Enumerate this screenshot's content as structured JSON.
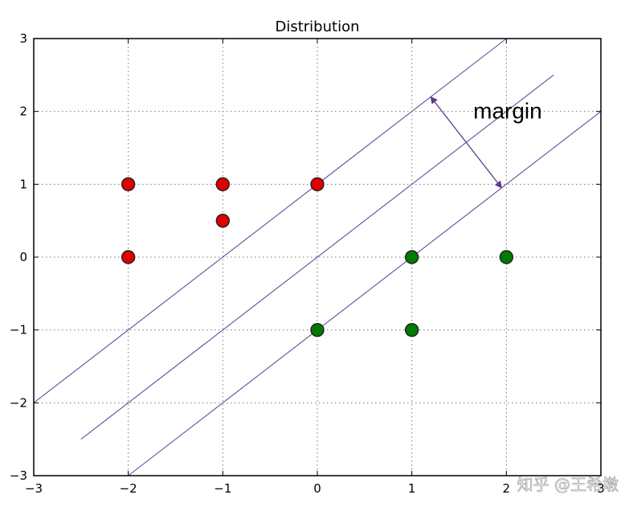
{
  "chart_data": {
    "type": "scatter",
    "title": "Distribution",
    "xlabel": "",
    "ylabel": "",
    "xlim": [
      -3,
      3
    ],
    "ylim": [
      -3,
      3
    ],
    "grid": true,
    "x_ticks": [
      -3,
      -2,
      -1,
      0,
      1,
      2,
      3
    ],
    "y_ticks": [
      -3,
      -2,
      -1,
      0,
      1,
      2,
      3
    ],
    "x_tick_labels": [
      "−3",
      "−2",
      "−1",
      "0",
      "1",
      "2",
      "3"
    ],
    "y_tick_labels": [
      "−3",
      "−2",
      "−1",
      "0",
      "1",
      "2",
      "3"
    ],
    "series": [
      {
        "color": "#e00000",
        "points": [
          {
            "x": -2,
            "y": 1
          },
          {
            "x": -2,
            "y": 0
          },
          {
            "x": -1,
            "y": 1
          },
          {
            "x": -1,
            "y": 0.5
          },
          {
            "x": 0,
            "y": 1
          }
        ]
      },
      {
        "color": "#007a00",
        "points": [
          {
            "x": 0,
            "y": -1
          },
          {
            "x": 1,
            "y": 0
          },
          {
            "x": 1,
            "y": -1
          },
          {
            "x": 2,
            "y": 0
          }
        ]
      }
    ],
    "lines": [
      {
        "color": "#6a4a9a",
        "x1": -3,
        "y1": -2,
        "x2": 2,
        "y2": 3
      },
      {
        "color": "#6a4a9a",
        "x1": -2.5,
        "y1": -2.5,
        "x2": 2.5,
        "y2": 2.5
      },
      {
        "color": "#6a4a9a",
        "x1": -2,
        "y1": -3,
        "x2": 3,
        "y2": 2
      }
    ],
    "arrow": {
      "color": "#5b3a8a",
      "x1": 1.2,
      "y1": 2.2,
      "x2": 1.95,
      "y2": 0.95
    },
    "annotations": [
      {
        "text": "margin",
        "x": 1.65,
        "y": 1.9
      }
    ]
  },
  "watermark": {
    "text": "知乎 @王希墩"
  }
}
